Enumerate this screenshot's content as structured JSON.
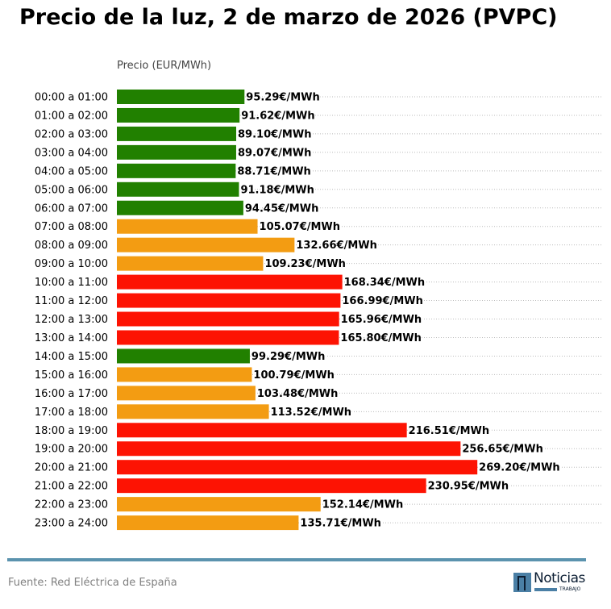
{
  "chart_data": {
    "type": "bar",
    "orientation": "horizontal",
    "title": "Precio de la luz, 2 de marzo de 2026 (PVPC)",
    "xlabel": "Precio (EUR/MWh)",
    "ylabel": "",
    "xlim": [
      0,
      363
    ],
    "grid": "horizontal dotted",
    "value_suffix": "€/MWh",
    "categories": [
      "00:00 a 01:00",
      "01:00 a 02:00",
      "02:00 a 03:00",
      "03:00 a 04:00",
      "04:00 a 05:00",
      "05:00 a 06:00",
      "06:00 a 07:00",
      "07:00 a 08:00",
      "08:00 a 09:00",
      "09:00 a 10:00",
      "10:00 a 11:00",
      "11:00 a 12:00",
      "12:00 a 13:00",
      "13:00 a 14:00",
      "14:00 a 15:00",
      "15:00 a 16:00",
      "16:00 a 17:00",
      "17:00 a 18:00",
      "18:00 a 19:00",
      "19:00 a 20:00",
      "20:00 a 21:00",
      "21:00 a 22:00",
      "22:00 a 23:00",
      "23:00 a 24:00"
    ],
    "values": [
      95.29,
      91.62,
      89.1,
      89.07,
      88.71,
      91.18,
      94.45,
      105.07,
      132.66,
      109.23,
      168.34,
      166.99,
      165.96,
      165.8,
      99.29,
      100.79,
      103.48,
      113.52,
      216.51,
      256.65,
      269.2,
      230.95,
      152.14,
      135.71
    ],
    "labels": [
      "95.29€/MWh",
      "91.62€/MWh",
      "89.10€/MWh",
      "89.07€/MWh",
      "88.71€/MWh",
      "91.18€/MWh",
      "94.45€/MWh",
      "105.07€/MWh",
      "132.66€/MWh",
      "109.23€/MWh",
      "168.34€/MWh",
      "166.99€/MWh",
      "165.96€/MWh",
      "165.80€/MWh",
      "99.29€/MWh",
      "100.79€/MWh",
      "103.48€/MWh",
      "113.52€/MWh",
      "216.51€/MWh",
      "256.65€/MWh",
      "269.20€/MWh",
      "230.95€/MWh",
      "152.14€/MWh",
      "135.71€/MWh"
    ],
    "levels": [
      "low",
      "low",
      "low",
      "low",
      "low",
      "low",
      "low",
      "mid",
      "mid",
      "mid",
      "high",
      "high",
      "high",
      "high",
      "low",
      "mid",
      "mid",
      "mid",
      "high",
      "high",
      "high",
      "high",
      "mid",
      "mid"
    ],
    "colors": {
      "low": "#218000",
      "mid": "#f39c12",
      "high": "#fd1303"
    }
  },
  "footer": {
    "source": "Fuente: Red Eléctrica de España",
    "logo_text": "Noticias",
    "logo_subtext": "TRABAJO"
  },
  "colors": {
    "rule": "#5b93ae",
    "logo": "#4a7fa5"
  }
}
